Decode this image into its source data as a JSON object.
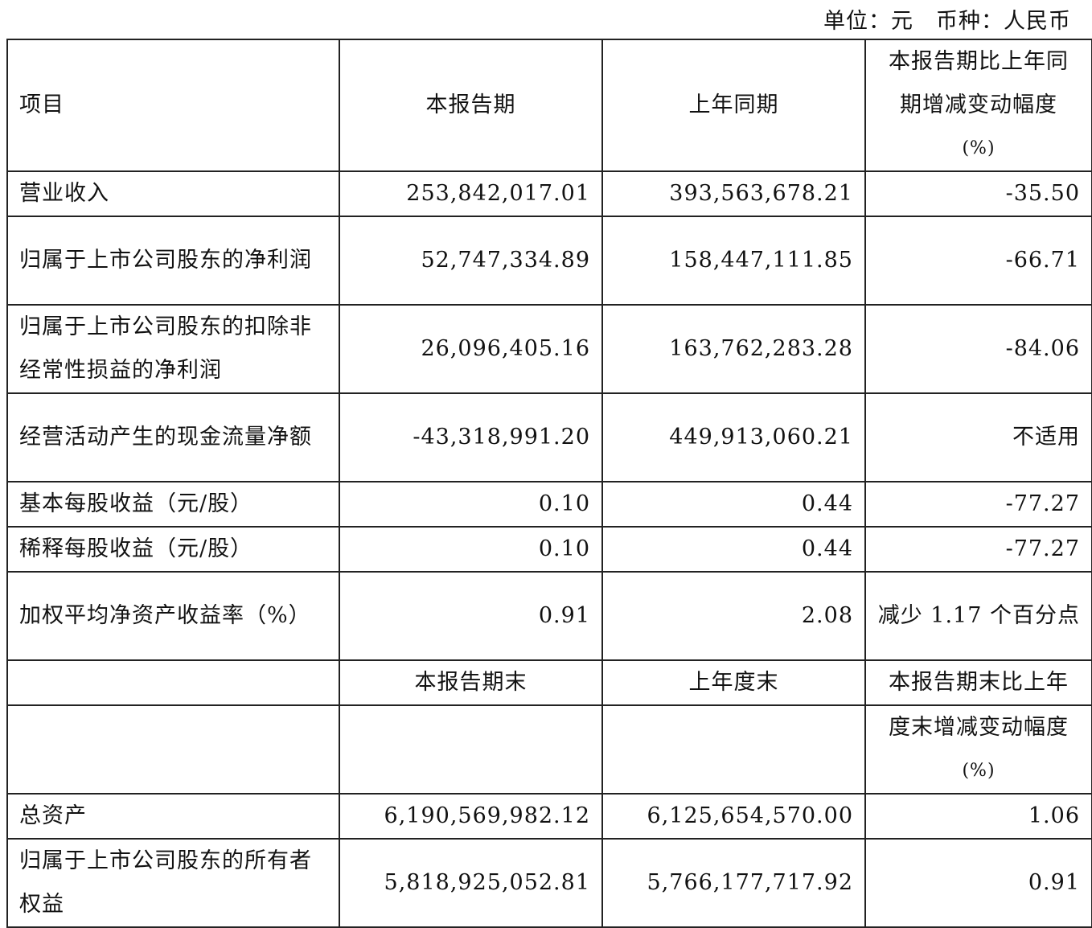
{
  "unit_note": "单位：元　币种：人民币",
  "header1": {
    "item": "项目",
    "current": "本报告期",
    "prior": "上年同期",
    "change_line1": "本报告期比上年同",
    "change_line2": "期增减变动幅度",
    "change_line3": "(%)"
  },
  "rows1": [
    {
      "item": "营业收入",
      "current": "253,842,017.01",
      "prior": "393,563,678.21",
      "change": "-35.50"
    },
    {
      "item": "归属于上市公司股东的净利润",
      "current": "52,747,334.89",
      "prior": "158,447,111.85",
      "change": "-66.71"
    },
    {
      "item": "归属于上市公司股东的扣除非经常性损益的净利润",
      "current": "26,096,405.16",
      "prior": "163,762,283.28",
      "change": "-84.06"
    },
    {
      "item": "经营活动产生的现金流量净额",
      "current": "-43,318,991.20",
      "prior": "449,913,060.21",
      "change": "不适用"
    },
    {
      "item": "基本每股收益（元/股）",
      "current": "0.10",
      "prior": "0.44",
      "change": "-77.27"
    },
    {
      "item": "稀释每股收益（元/股）",
      "current": "0.10",
      "prior": "0.44",
      "change": "-77.27"
    },
    {
      "item": "加权平均净资产收益率（%）",
      "current": "0.91",
      "prior": "2.08",
      "change": "减少 1.17 个百分点"
    }
  ],
  "header2": {
    "current": "本报告期末",
    "prior": "上年度末",
    "change_line1": "本报告期末比上年",
    "change_line2": "度末增减变动幅度",
    "change_line3": "(%)"
  },
  "rows2": [
    {
      "item": "总资产",
      "current": "6,190,569,982.12",
      "prior": "6,125,654,570.00",
      "change": "1.06"
    },
    {
      "item": "归属于上市公司股东的所有者权益",
      "current": "5,818,925,052.81",
      "prior": "5,766,177,717.92",
      "change": "0.91"
    }
  ]
}
